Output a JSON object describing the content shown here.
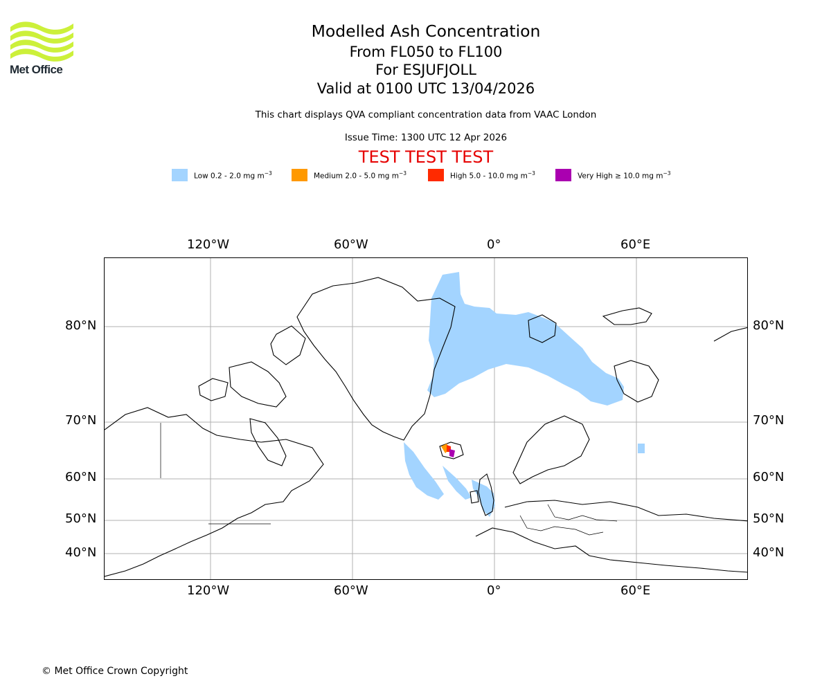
{
  "header": {
    "logo_text": "Met Office",
    "title": "Modelled Ash Concentration",
    "levels": "From FL050 to FL100",
    "volcano": "For ESJUFJOLL",
    "valid": "Valid at 0100 UTC 13/04/2026",
    "compliance": "This chart displays QVA compliant concentration data from VAAC London",
    "issue": "Issue Time: 1300 UTC 12 Apr 2026",
    "test_banner": "TEST TEST TEST"
  },
  "colors": {
    "logo_green": "#ccf03a",
    "test_text": "#e60000",
    "low": "#a3d4ff",
    "medium": "#ff9900",
    "high": "#ff2a00",
    "very_high": "#aa00b0",
    "coast": "#000000",
    "grid": "#b0b0b0"
  },
  "legend": [
    {
      "key": "low",
      "label": "Low 0.2 - 2.0 mg m",
      "unit_exp": "−3"
    },
    {
      "key": "medium",
      "label": "Medium 2.0 - 5.0 mg m",
      "unit_exp": "−3"
    },
    {
      "key": "high",
      "label": "High 5.0 - 10.0 mg m",
      "unit_exp": "−3"
    },
    {
      "key": "very_high",
      "label": "Very High  ≥  10.0 mg m",
      "unit_exp": "−3"
    }
  ],
  "axes": {
    "longitude_ticks": [
      "120°W",
      "60°W",
      "0°",
      "60°E"
    ],
    "latitude_ticks": [
      "80°N",
      "70°N",
      "60°N",
      "50°N",
      "40°N"
    ]
  },
  "map": {
    "region": "North Atlantic / Arctic",
    "volcano_name": "ESJUFJOLL",
    "volcano_location": "Iceland"
  },
  "footer": {
    "copyright": "© Met Office Crown Copyright"
  }
}
